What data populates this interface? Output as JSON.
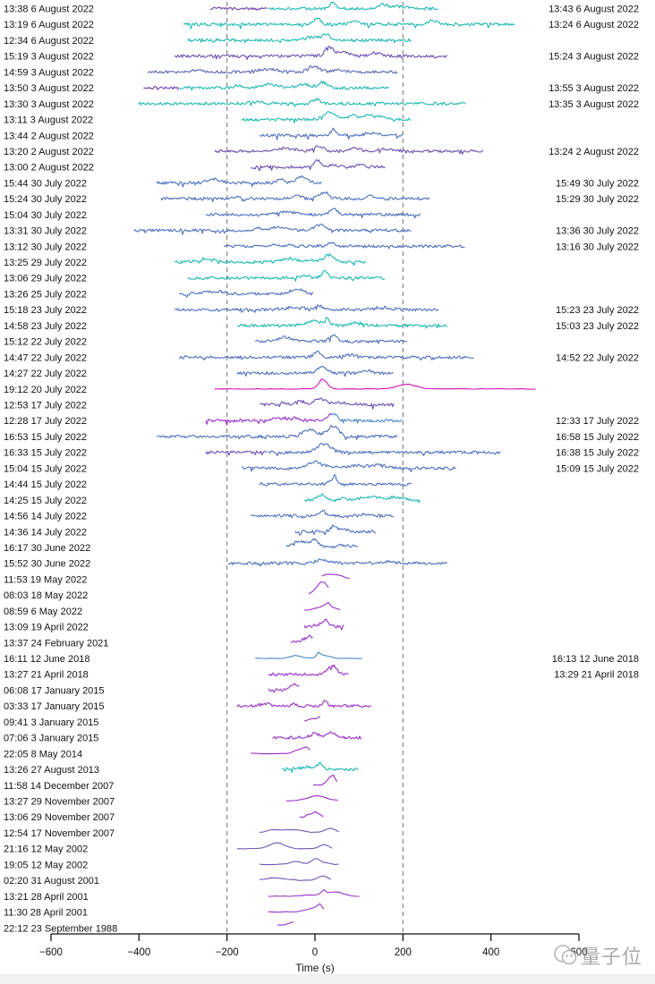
{
  "figure": {
    "kind": "stacked burst time profiles",
    "watermark_text": "量子位",
    "colors": {
      "teal": "#1db8b2",
      "blue": "#4d6fbe",
      "indigo": "#5868b8",
      "blueviolet": "#6a4fb2",
      "slateviolet": "#7055b5",
      "purple": "#9a30c9",
      "darkpurple": "#6a3fb0",
      "magenta": "#d30fb2",
      "steelblue": "#4b87c5",
      "reference_line": "#888888",
      "axis": "#111111",
      "watermark": "#9d9d9d"
    }
  },
  "chart_data": {
    "type": "line",
    "xlabel": "Time (s)",
    "xlim": [
      -600,
      600
    ],
    "x_ticks": [
      -600,
      -400,
      -200,
      0,
      200,
      400,
      600
    ],
    "x_tick_labels": [
      "−600",
      "−400",
      "−200",
      "0",
      "200",
      "400",
      "600"
    ],
    "reference_lines_x": [
      -200,
      200
    ],
    "grid": false,
    "legend": "none",
    "rows": [
      {
        "l": "13:38 6 August 2022",
        "r": "13:43 6 August 2022",
        "c": "darkpurple",
        "c2": "teal",
        "split": -106,
        "t0": -238,
        "t1": 281,
        "s": "noisy",
        "a": 7
      },
      {
        "l": "13:19 6 August 2022",
        "r": "13:24 6 August 2022",
        "c": "teal",
        "t0": -299,
        "t1": 454,
        "s": "noisy",
        "a": 7
      },
      {
        "l": "12:34 6 August 2022",
        "r": null,
        "c": "teal",
        "t0": -289,
        "t1": 220,
        "s": "noisy",
        "a": 6
      },
      {
        "l": "15:19 3 August 2022",
        "r": "15:24 3 August 2022",
        "c": "blueviolet",
        "t0": -319,
        "t1": 301,
        "s": "noisy",
        "a": 7
      },
      {
        "l": "14:59 3 August 2022",
        "r": null,
        "c": "indigo",
        "t0": -380,
        "t1": 189,
        "s": "noisy",
        "a": 6
      },
      {
        "l": "13:50 3 August 2022",
        "r": "13:55 3 August 2022",
        "c": "darkpurple",
        "c2": "teal",
        "split": -309,
        "t0": -390,
        "t1": 169,
        "s": "noisy",
        "a": 6
      },
      {
        "l": "13:30 3 August 2022",
        "r": "13:35 3 August 2022",
        "c": "teal",
        "t0": -401,
        "t1": 342,
        "s": "noisy",
        "a": 5
      },
      {
        "l": "13:11 3 August 2022",
        "r": null,
        "c": "teal",
        "t0": -167,
        "t1": 220,
        "s": "noisy",
        "a": 8
      },
      {
        "l": "13:44 2 August 2022",
        "r": null,
        "c": "blue",
        "t0": -126,
        "t1": 199,
        "s": "noisy",
        "a": 7
      },
      {
        "l": "13:20 2 August 2022",
        "r": "13:24 2 August 2022",
        "c": "blueviolet",
        "t0": -228,
        "t1": 382,
        "s": "noisy",
        "a": 6
      },
      {
        "l": "13:00 2 August 2022",
        "r": null,
        "c": "blueviolet",
        "t0": -146,
        "t1": 159,
        "s": "noisy",
        "a": 7
      },
      {
        "l": "15:44 30 July 2022",
        "r": "15:49 30 July 2022",
        "c": "blue",
        "t0": -360,
        "t1": 16,
        "s": "noisy",
        "a": 7
      },
      {
        "l": "15:24 30 July 2022",
        "r": "15:29 30 July 2022",
        "c": "blue",
        "t0": -350,
        "t1": 260,
        "s": "noisy",
        "a": 7
      },
      {
        "l": "15:04 30 July 2022",
        "r": null,
        "c": "blue",
        "t0": -248,
        "t1": 240,
        "s": "noisy",
        "a": 6
      },
      {
        "l": "13:31 30 July 2022",
        "r": "13:36 30 July 2022",
        "c": "blue",
        "t0": -411,
        "t1": 220,
        "s": "noisy",
        "a": 6
      },
      {
        "l": "13:12 30 July 2022",
        "r": "13:16 30 July 2022",
        "c": "blue",
        "t0": -207,
        "t1": 342,
        "s": "noisy",
        "a": 3
      },
      {
        "l": "13:25 29 July 2022",
        "r": null,
        "c": "teal",
        "t0": -319,
        "t1": 118,
        "s": "noisy",
        "a": 8
      },
      {
        "l": "13:06 29 July 2022",
        "r": null,
        "c": "teal",
        "t0": -289,
        "t1": 159,
        "s": "noisy",
        "a": 7
      },
      {
        "l": "13:26 25 July 2022",
        "r": null,
        "c": "blue",
        "t0": -309,
        "t1": -4,
        "s": "noisy",
        "a": 6
      },
      {
        "l": "15:18 23 July 2022",
        "r": "15:23 23 July 2022",
        "c": "blue",
        "t0": -319,
        "t1": 281,
        "s": "noisy",
        "a": 5
      },
      {
        "l": "14:58 23 July 2022",
        "r": "15:03 23 July 2022",
        "c": "teal",
        "t0": -177,
        "t1": 301,
        "s": "noisy",
        "a": 7
      },
      {
        "l": "15:12 22 July 2022",
        "r": null,
        "c": "blue",
        "t0": -136,
        "t1": 209,
        "s": "noisy",
        "a": 7
      },
      {
        "l": "14:47 22 July 2022",
        "r": "14:52 22 July 2022",
        "c": "blue",
        "t0": -309,
        "t1": 362,
        "s": "noisy",
        "a": 6
      },
      {
        "l": "14:27 22 July 2022",
        "r": null,
        "c": "blue",
        "t0": -177,
        "t1": 179,
        "s": "noisy",
        "a": 6
      },
      {
        "l": "19:12 20 July 2022",
        "r": null,
        "c": "magenta",
        "t0": -228,
        "t1": 504,
        "s": "smooth",
        "a": 8
      },
      {
        "l": "12:53 17 July 2022",
        "r": null,
        "c": "blueviolet",
        "t0": -126,
        "t1": 179,
        "s": "noisy",
        "a": 7
      },
      {
        "l": "12:28 17 July 2022",
        "r": "12:33 17 July 2022",
        "c": "purple",
        "c2": "steelblue",
        "split": 37,
        "t0": -248,
        "t1": 199,
        "s": "noisy",
        "a": 8
      },
      {
        "l": "16:53 15 July 2022",
        "r": "16:58 15 July 2022",
        "c": "blue",
        "t0": -360,
        "t1": 189,
        "s": "noisy",
        "a": 8
      },
      {
        "l": "16:33 15 July 2022",
        "r": "16:38 15 July 2022",
        "c": "blueviolet",
        "c2": "blue",
        "split": -106,
        "t0": -248,
        "t1": 423,
        "s": "noisy",
        "a": 6
      },
      {
        "l": "15:04 15 July 2022",
        "r": "15:09 15 July 2022",
        "c": "blue",
        "t0": -167,
        "t1": 321,
        "s": "noisy",
        "a": 7
      },
      {
        "l": "14:44 15 July 2022",
        "r": null,
        "c": "blue",
        "t0": -126,
        "t1": 220,
        "s": "noisy",
        "a": 6
      },
      {
        "l": "14:25 15 July 2022",
        "r": null,
        "c": "teal",
        "t0": -24,
        "t1": 240,
        "s": "noisy",
        "a": 6
      },
      {
        "l": "14:56 14 July 2022",
        "r": null,
        "c": "blue",
        "t0": -146,
        "t1": 179,
        "s": "noisy",
        "a": 6
      },
      {
        "l": "14:36 14 July 2022",
        "r": null,
        "c": "blue",
        "t0": -45,
        "t1": 138,
        "s": "noisy",
        "a": 6
      },
      {
        "l": "16:17 30 June 2022",
        "r": null,
        "c": "blue",
        "t0": -65,
        "t1": 98,
        "s": "noisy",
        "a": 7
      },
      {
        "l": "15:52 30 June 2022",
        "r": null,
        "c": "blue",
        "t0": -197,
        "t1": 301,
        "s": "noisy",
        "a": 4
      },
      {
        "l": "11:53 19 May 2022",
        "r": null,
        "c": "purple",
        "t0": 16,
        "t1": 87,
        "s": "smooth",
        "a": 5
      },
      {
        "l": "08:03 18 May 2022",
        "r": null,
        "c": "purple",
        "t0": -14,
        "t1": 37,
        "s": "smooth",
        "a": 7
      },
      {
        "l": "08:59 6 May 2022",
        "r": null,
        "c": "purple",
        "t0": -24,
        "t1": 57,
        "s": "smooth",
        "a": 5
      },
      {
        "l": "13:09 19 April 2022",
        "r": null,
        "c": "purple",
        "t0": -24,
        "t1": 67,
        "s": "noisy",
        "a": 5
      },
      {
        "l": "13:37 24 February 2021",
        "r": null,
        "c": "purple",
        "t0": -55,
        "t1": -4,
        "s": "noisy",
        "a": 5
      },
      {
        "l": "16:11 12 June 2018",
        "r": "16:13 12 June 2018",
        "c": "steelblue",
        "t0": -136,
        "t1": 108,
        "s": "smooth",
        "a": 6
      },
      {
        "l": "13:27 21 April 2018",
        "r": "13:29 21 April 2018",
        "c": "purple",
        "t0": -106,
        "t1": 77,
        "s": "noisy",
        "a": 7
      },
      {
        "l": "06:08 17 January 2015",
        "r": null,
        "c": "purple",
        "t0": -106,
        "t1": -35,
        "s": "noisy",
        "a": 5
      },
      {
        "l": "03:33 17 January 2015",
        "r": null,
        "c": "purple",
        "t0": -177,
        "t1": 128,
        "s": "noisy",
        "a": 6
      },
      {
        "l": "09:41 3 January 2015",
        "r": null,
        "c": "purple",
        "t0": -24,
        "t1": 16,
        "s": "smooth",
        "a": 6
      },
      {
        "l": "07:06 3 January 2015",
        "r": null,
        "c": "purple",
        "t0": -96,
        "t1": 108,
        "s": "noisy",
        "a": 6
      },
      {
        "l": "22:05 8 May 2014",
        "r": null,
        "c": "purple",
        "t0": -146,
        "t1": -4,
        "s": "smooth",
        "a": 6
      },
      {
        "l": "13:26 27 August 2013",
        "r": null,
        "c": "teal",
        "t0": -75,
        "t1": 98,
        "s": "noisy",
        "a": 5
      },
      {
        "l": "11:58 14 December 2007",
        "r": null,
        "c": "purple",
        "t0": -4,
        "t1": 57,
        "s": "smooth",
        "a": 7
      },
      {
        "l": "13:27 29 November 2007",
        "r": null,
        "c": "purple",
        "t0": -65,
        "t1": 57,
        "s": "smooth",
        "a": 4
      },
      {
        "l": "13:06 29 November 2007",
        "r": null,
        "c": "purple",
        "t0": -35,
        "t1": 26,
        "s": "smooth",
        "a": 7
      },
      {
        "l": "12:54 17 November 2007",
        "r": null,
        "c": "slateviolet",
        "t0": -126,
        "t1": 57,
        "s": "smooth",
        "a": 5
      },
      {
        "l": "21:16 12 May 2002",
        "r": null,
        "c": "slateviolet",
        "t0": -177,
        "t1": 47,
        "s": "smooth",
        "a": 5
      },
      {
        "l": "19:05 12 May 2002",
        "r": null,
        "c": "slateviolet",
        "t0": -126,
        "t1": 57,
        "s": "smooth",
        "a": 5
      },
      {
        "l": "02:20 31 August 2001",
        "r": null,
        "c": "slateviolet",
        "t0": -126,
        "t1": 37,
        "s": "smooth",
        "a": 5
      },
      {
        "l": "13:21 28 April 2001",
        "r": null,
        "c": "purple",
        "t0": -106,
        "t1": 108,
        "s": "smooth",
        "a": 5
      },
      {
        "l": "11:30 28 April 2001",
        "r": null,
        "c": "purple",
        "t0": -106,
        "t1": 26,
        "s": "smooth",
        "a": 5
      },
      {
        "l": "22:12 23 September 1988",
        "r": null,
        "c": "purple",
        "t0": -85,
        "t1": -45,
        "s": "smooth",
        "a": 6
      }
    ]
  }
}
